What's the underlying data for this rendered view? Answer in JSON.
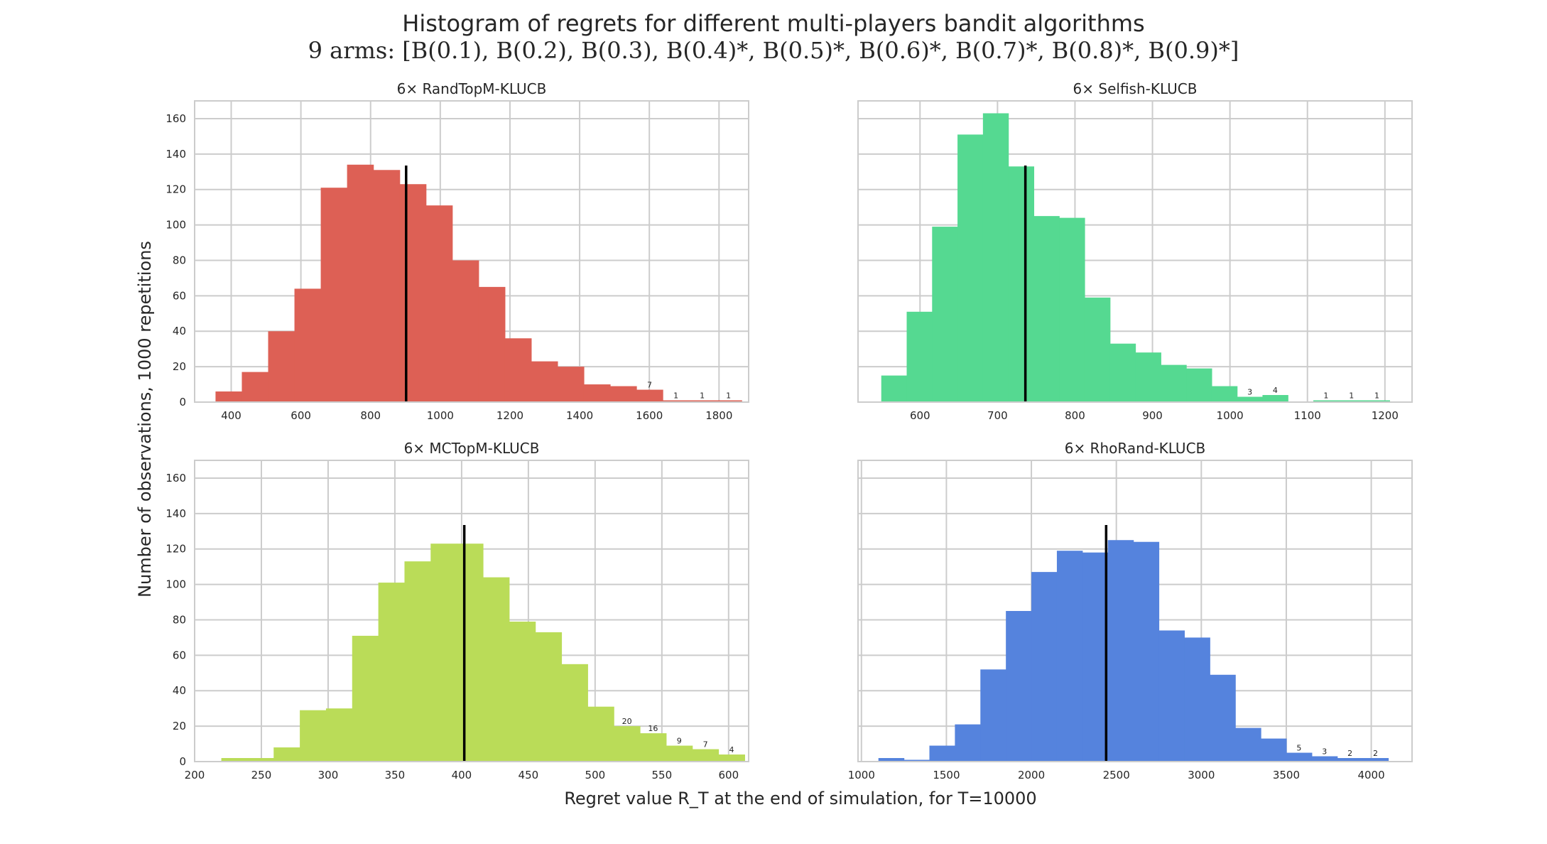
{
  "figure": {
    "title_line1": "Histogram of regrets for different multi-players bandit algorithms",
    "title_line2": "9 arms: [B(0.1), B(0.2), B(0.3), B(0.4)*, B(0.5)*, B(0.6)*, B(0.7)*, B(0.8)*, B(0.9)*]",
    "ylabel": "Number of observations, 1000 repetitions",
    "xlabel": "Regret value R_T at the end of simulation, for T=10000"
  },
  "chart_data": [
    {
      "type": "bar",
      "title": "6× RandTopM-KLUCB",
      "color": "#dd6055",
      "bin_start": 355,
      "bin_width": 75.5,
      "counts": [
        6,
        17,
        40,
        64,
        121,
        134,
        131,
        123,
        111,
        80,
        65,
        36,
        23,
        20,
        10,
        9,
        7,
        1,
        1,
        1
      ],
      "bar_labels": [
        "",
        "",
        "",
        "",
        "",
        "",
        "",
        "",
        "",
        "",
        "",
        "",
        "",
        "",
        "",
        "",
        "7",
        "1",
        "1",
        "1"
      ],
      "mean": 902,
      "xlim": [
        295,
        1885
      ],
      "ylim": [
        0,
        170
      ],
      "xticks": [
        400,
        600,
        800,
        1000,
        1200,
        1400,
        1600,
        1800
      ],
      "yticks": [
        0,
        20,
        40,
        60,
        80,
        100,
        120,
        140,
        160
      ]
    },
    {
      "type": "bar",
      "title": "6× Selfish-KLUCB",
      "color": "#55d991",
      "bin_start": 550,
      "bin_width": 32.8,
      "counts": [
        15,
        51,
        99,
        151,
        163,
        133,
        105,
        104,
        59,
        33,
        28,
        21,
        19,
        9,
        3,
        4,
        0,
        1,
        1,
        1
      ],
      "bar_labels": [
        "",
        "",
        "",
        "",
        "",
        "",
        "",
        "",
        "",
        "",
        "",
        "",
        "",
        "",
        "3",
        "4",
        "",
        "1",
        "1",
        "1"
      ],
      "mean": 736,
      "xlim": [
        520,
        1235
      ],
      "ylim": [
        0,
        170
      ],
      "xticks": [
        600,
        700,
        800,
        900,
        1000,
        1100,
        1200
      ],
      "yticks": [
        0,
        20,
        40,
        60,
        80,
        100,
        120,
        140,
        160
      ]
    },
    {
      "type": "bar",
      "title": "6× MCTopM-KLUCB",
      "color": "#badc58",
      "bin_start": 220,
      "bin_width": 19.6,
      "counts": [
        2,
        2,
        8,
        29,
        30,
        71,
        101,
        113,
        123,
        123,
        104,
        79,
        73,
        55,
        31,
        20,
        16,
        9,
        7,
        4
      ],
      "bar_labels": [
        "",
        "",
        "",
        "",
        "",
        "",
        "",
        "",
        "",
        "",
        "",
        "",
        "",
        "",
        "",
        "20",
        "16",
        "9",
        "7",
        "4"
      ],
      "mean": 402,
      "xlim": [
        200,
        615
      ],
      "ylim": [
        0,
        170
      ],
      "xticks": [
        200,
        250,
        300,
        350,
        400,
        450,
        500,
        550,
        600
      ],
      "yticks": [
        0,
        20,
        40,
        60,
        80,
        100,
        120,
        140,
        160
      ]
    },
    {
      "type": "bar",
      "title": "6× RhoRand-KLUCB",
      "color": "#5583dd",
      "bin_start": 1100,
      "bin_width": 150,
      "counts": [
        2,
        1,
        9,
        21,
        52,
        85,
        107,
        119,
        118,
        125,
        124,
        74,
        70,
        49,
        19,
        13,
        5,
        3,
        2,
        2
      ],
      "bar_labels": [
        "",
        "",
        "",
        "",
        "",
        "",
        "",
        "",
        "",
        "",
        "",
        "",
        "",
        "",
        "",
        "",
        "5",
        "3",
        "2",
        "2"
      ],
      "mean": 2440,
      "xlim": [
        980,
        4240
      ],
      "ylim": [
        0,
        170
      ],
      "xticks": [
        1000,
        1500,
        2000,
        2500,
        3000,
        3500,
        4000
      ],
      "yticks": [
        0,
        20,
        40,
        60,
        80,
        100,
        120,
        140,
        160
      ]
    }
  ]
}
